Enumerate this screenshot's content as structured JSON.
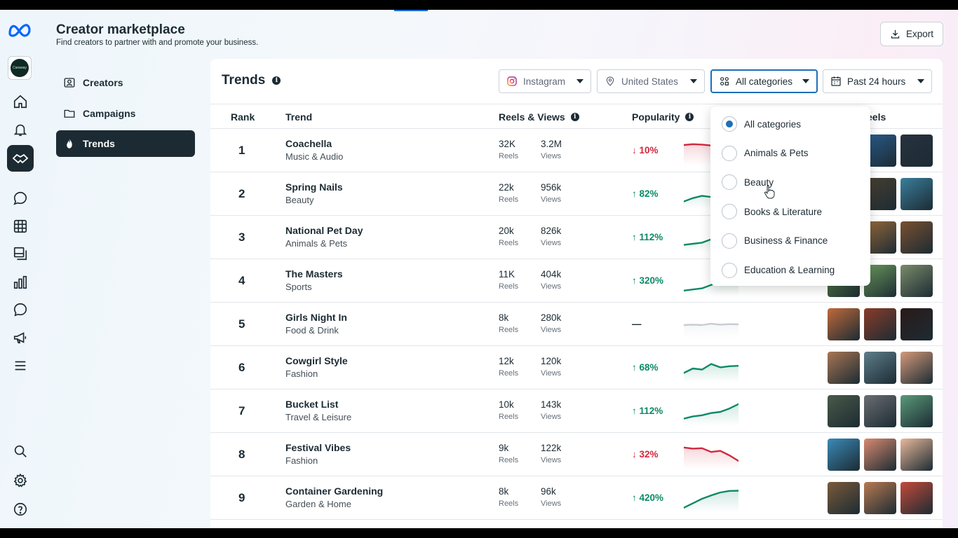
{
  "header": {
    "title": "Creator marketplace",
    "subtitle": "Find creators to partner with and promote your business.",
    "export_label": "Export"
  },
  "account": {
    "label": "Caraway"
  },
  "subnav": [
    {
      "label": "Creators",
      "icon": "person-card-icon"
    },
    {
      "label": "Campaigns",
      "icon": "folder-icon"
    },
    {
      "label": "Trends",
      "icon": "flame-icon",
      "active": true
    }
  ],
  "rail_icons": [
    "home-icon",
    "bell-icon",
    "handshake-icon",
    "chat-icon",
    "table-icon",
    "pages-icon",
    "insights-icon",
    "comment-icon",
    "megaphone-icon",
    "menu-icon",
    "search-icon",
    "gear-icon",
    "help-icon"
  ],
  "panel": {
    "title": "Trends",
    "filters": {
      "platform": "Instagram",
      "country": "United States",
      "category": "All categories",
      "period": "Past 24 hours"
    },
    "columns": {
      "rank": "Rank",
      "trend": "Trend",
      "reels_views": "Reels & Views",
      "popularity": "Popularity",
      "reels": "eels"
    },
    "reels_label": "Reels",
    "views_label": "Views"
  },
  "rows": [
    {
      "rank": "1",
      "name": "Coachella",
      "category": "Music & Audio",
      "reels": "32K",
      "views": "3.2M",
      "pop": "↓ 10%",
      "dir": "down",
      "spark": [
        0.78,
        0.82,
        0.8,
        0.76,
        0.74,
        0.72,
        0.7
      ]
    },
    {
      "rank": "2",
      "name": "Spring Nails",
      "category": "Beauty",
      "reels": "22k",
      "views": "956k",
      "pop": "↑ 82%",
      "dir": "up",
      "spark": [
        0.2,
        0.35,
        0.45,
        0.4,
        0.55,
        0.7,
        0.8
      ]
    },
    {
      "rank": "3",
      "name": "National Pet Day",
      "category": "Animals & Pets",
      "reels": "20k",
      "views": "826k",
      "pop": "↑ 112%",
      "dir": "up",
      "spark": [
        0.2,
        0.25,
        0.3,
        0.45,
        0.6,
        0.7,
        0.8
      ]
    },
    {
      "rank": "4",
      "name": "The Masters",
      "category": "Sports",
      "reels": "11K",
      "views": "404k",
      "pop": "↑ 320%",
      "dir": "up",
      "spark": [
        0.1,
        0.15,
        0.2,
        0.35,
        0.55,
        0.75,
        0.9
      ]
    },
    {
      "rank": "5",
      "name": "Girls Night In",
      "category": "Food & Drink",
      "reels": "8k",
      "views": "280k",
      "pop": "—",
      "dir": "flat",
      "spark": [
        0.5,
        0.52,
        0.5,
        0.56,
        0.52,
        0.54,
        0.53
      ]
    },
    {
      "rank": "6",
      "name": "Cowgirl Style",
      "category": "Fashion",
      "reels": "12k",
      "views": "120k",
      "pop": "↑ 68%",
      "dir": "up",
      "spark": [
        0.3,
        0.5,
        0.45,
        0.7,
        0.55,
        0.6,
        0.62
      ]
    },
    {
      "rank": "7",
      "name": "Bucket List",
      "category": "Travel & Leisure",
      "reels": "10k",
      "views": "143k",
      "pop": "↑ 112%",
      "dir": "up",
      "spark": [
        0.2,
        0.3,
        0.35,
        0.45,
        0.5,
        0.65,
        0.85
      ]
    },
    {
      "rank": "8",
      "name": "Festival Vibes",
      "category": "Fashion",
      "reels": "9k",
      "views": "122k",
      "pop": "↓ 32%",
      "dir": "down",
      "spark": [
        0.85,
        0.8,
        0.82,
        0.65,
        0.7,
        0.5,
        0.25
      ]
    },
    {
      "rank": "9",
      "name": "Container Gardening",
      "category": "Garden & Home",
      "reels": "8k",
      "views": "96k",
      "pop": "↑ 420%",
      "dir": "up",
      "spark": [
        0.1,
        0.3,
        0.5,
        0.65,
        0.78,
        0.85,
        0.86
      ]
    }
  ],
  "thumb_colors": [
    [
      "#1b3347",
      "#2a5d8f",
      "#27323f"
    ],
    [
      "#c98b7a",
      "#4a4030",
      "#3a7e9c"
    ],
    [
      "#b88a52",
      "#9a6b3c",
      "#7a5030"
    ],
    [
      "#5f8d4a",
      "#6c9a5c",
      "#7b8b6a"
    ],
    [
      "#c06a3a",
      "#8a3c2a",
      "#2a1a18"
    ],
    [
      "#a87654",
      "#5e7e8a",
      "#d49a7a"
    ],
    [
      "#4a5a48",
      "#6a6e72",
      "#5a9a7a"
    ],
    [
      "#3a8ab8",
      "#d88a70",
      "#e8b89a"
    ],
    [
      "#7a5a3a",
      "#b87a52",
      "#c44a3a"
    ]
  ],
  "dropdown": {
    "options": [
      {
        "label": "All categories",
        "selected": true
      },
      {
        "label": "Animals & Pets",
        "selected": false
      },
      {
        "label": "Beauty",
        "selected": false
      },
      {
        "label": "Books & Literature",
        "selected": false
      },
      {
        "label": "Business & Finance",
        "selected": false
      },
      {
        "label": "Education & Learning",
        "selected": false
      }
    ]
  },
  "colors": {
    "accent": "#1d6fb8",
    "up": "#0d8a66",
    "down": "#d1283f",
    "dark": "#1c2b33"
  }
}
